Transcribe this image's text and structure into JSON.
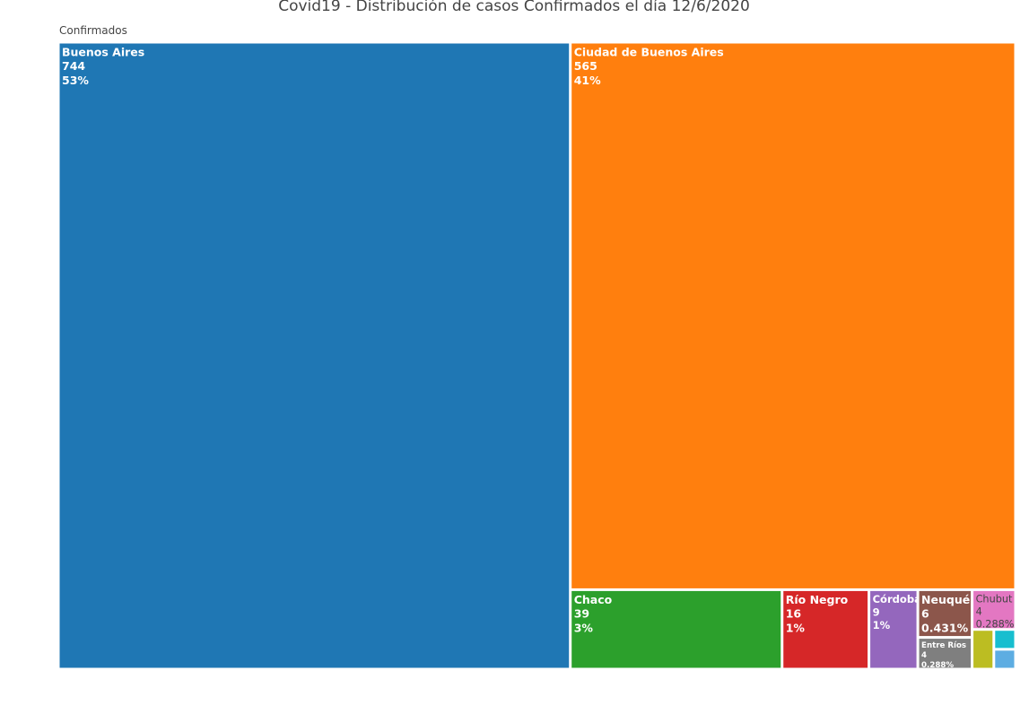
{
  "chart_data": {
    "type": "treemap",
    "title": "Covid19 - Distribución de casos Confirmados el día 12/6/2020",
    "root": "Confirmados",
    "categories": [
      "Buenos Aires",
      "Ciudad de Buenos Aires",
      "Chaco",
      "Río Negro",
      "Córdoba",
      "Neuquén",
      "Entre Ríos",
      "Chubut",
      null,
      null,
      null
    ],
    "values": [
      744,
      565,
      39,
      16,
      9,
      6,
      4,
      4,
      2,
      1,
      1
    ],
    "value_labels": [
      "53%",
      "41%",
      "3%",
      "1%",
      "1%",
      "0.431%",
      "0.288%",
      "0.288%",
      null,
      null,
      null
    ],
    "colors": [
      "#1f77b4",
      "#ff7f0e",
      "#2ca02c",
      "#d62728",
      "#9467bd",
      "#8c564b",
      "#7f7f7f",
      "#e377c2",
      "#bcbd22",
      "#17becf",
      "#5dade2"
    ]
  }
}
